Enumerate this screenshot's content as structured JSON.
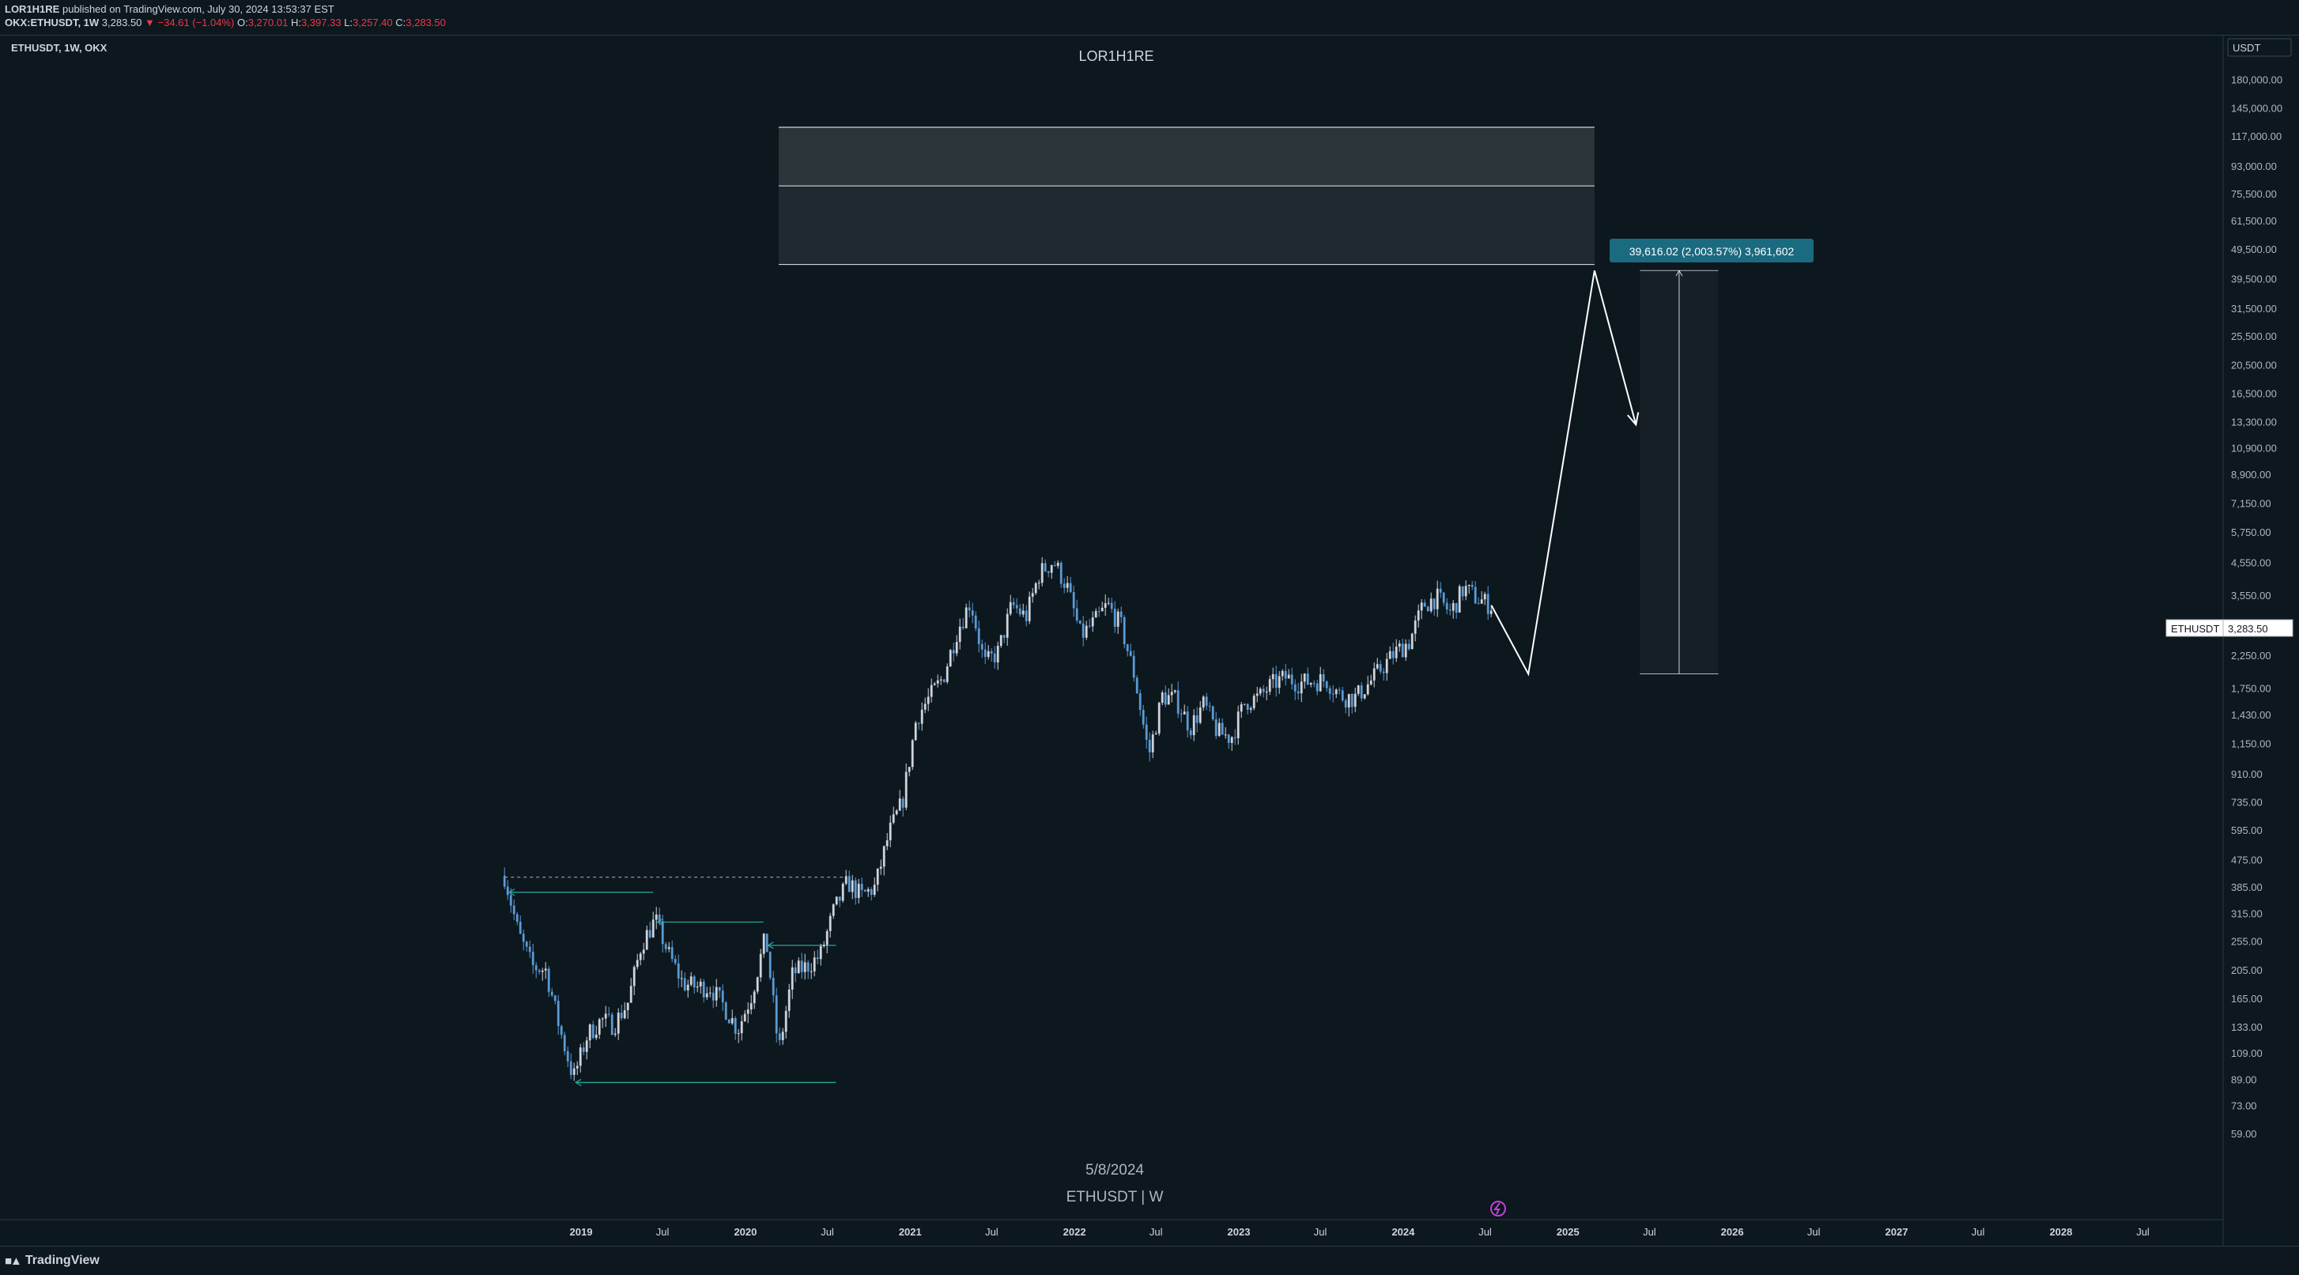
{
  "header": {
    "publisher": "LOR1H1RE",
    "published_text": "published on TradingView.com, July 30, 2024 13:53:37 EST",
    "symbol": "OKX:ETHUSDT, 1W",
    "last": "3,283.50",
    "change": "▼ −34.61 (−1.04%)",
    "o_label": "O:",
    "o": "3,270.01",
    "h_label": "H:",
    "h": "3,397.33",
    "l_label": "L:",
    "l": "3,257.40",
    "c_label": "C:",
    "c": "3,283.50"
  },
  "chart_title": "LOR1H1RE",
  "pane_label": "ETHUSDT, 1W, OKX",
  "watermark": {
    "date": "5/8/2024",
    "symbol": "ETHUSDT | W"
  },
  "price_axis": {
    "currency": "USDT",
    "ticks": [
      "180,000.00",
      "145,000.00",
      "117,000.00",
      "93,000.00",
      "75,500.00",
      "61,500.00",
      "49,500.00",
      "39,500.00",
      "31,500.00",
      "25,500.00",
      "20,500.00",
      "16,500.00",
      "13,300.00",
      "10,900.00",
      "8,900.00",
      "7,150.00",
      "5,750.00",
      "4,550.00",
      "3,550.00",
      "2,850.00",
      "2,250.00",
      "1,750.00",
      "1,430.00",
      "1,150.00",
      "910.00",
      "735.00",
      "595.00",
      "475.00",
      "385.00",
      "315.00",
      "255.00",
      "205.00",
      "165.00",
      "133.00",
      "109.00",
      "89.00",
      "73.00",
      "59.00"
    ],
    "tag_symbol": "ETHUSDT",
    "tag_price": "3,283.50"
  },
  "time_axis": [
    "2019",
    "Jul",
    "2020",
    "Jul",
    "2021",
    "Jul",
    "2022",
    "Jul",
    "2023",
    "Jul",
    "2024",
    "Jul",
    "2025",
    "Jul",
    "2026",
    "Jul",
    "2027",
    "Jul",
    "2028",
    "Jul"
  ],
  "measure_label": "39,616.02 (2,003.57%) 3,961,602",
  "footer": {
    "logo": "TradingView"
  },
  "colors": {
    "background": "#0c171e",
    "candle": "#5b9bd5",
    "candle_up": "#d1d4dc",
    "arrow": "#26a69a",
    "measure_tag": "#1a6a80"
  },
  "chart_data": {
    "type": "candlestick",
    "symbol": "ETHUSDT",
    "interval": "1W",
    "scale": "log",
    "ylim": [
      50,
      200000
    ],
    "x_range": [
      "2018-05",
      "2028-12"
    ],
    "series": [
      {
        "name": "ETHUSDT",
        "points": [
          [
            "2018-07-15",
            420
          ],
          [
            "2018-08-15",
            270
          ],
          [
            "2018-09-15",
            210
          ],
          [
            "2018-10-15",
            205
          ],
          [
            "2018-11-15",
            130
          ],
          [
            "2018-12-15",
            90
          ],
          [
            "2019-01-15",
            125
          ],
          [
            "2019-02-15",
            140
          ],
          [
            "2019-03-15",
            135
          ],
          [
            "2019-04-15",
            160
          ],
          [
            "2019-05-15",
            250
          ],
          [
            "2019-06-15",
            300
          ],
          [
            "2019-07-15",
            230
          ],
          [
            "2019-08-15",
            185
          ],
          [
            "2019-09-15",
            180
          ],
          [
            "2019-10-15",
            180
          ],
          [
            "2019-11-15",
            155
          ],
          [
            "2019-12-15",
            130
          ],
          [
            "2020-01-15",
            170
          ],
          [
            "2020-02-15",
            265
          ],
          [
            "2020-03-15",
            110
          ],
          [
            "2020-04-15",
            200
          ],
          [
            "2020-05-15",
            210
          ],
          [
            "2020-06-15",
            228
          ],
          [
            "2020-07-15",
            320
          ],
          [
            "2020-08-15",
            400
          ],
          [
            "2020-09-15",
            360
          ],
          [
            "2020-10-15",
            385
          ],
          [
            "2020-11-15",
            580
          ],
          [
            "2020-12-15",
            740
          ],
          [
            "2021-01-15",
            1400
          ],
          [
            "2021-02-15",
            1650
          ],
          [
            "2021-03-15",
            1900
          ],
          [
            "2021-04-15",
            2700
          ],
          [
            "2021-05-15",
            3400
          ],
          [
            "2021-06-15",
            2100
          ],
          [
            "2021-07-15",
            2300
          ],
          [
            "2021-08-15",
            3300
          ],
          [
            "2021-09-15",
            3000
          ],
          [
            "2021-10-15",
            4200
          ],
          [
            "2021-11-15",
            4600
          ],
          [
            "2021-12-15",
            3800
          ],
          [
            "2022-01-15",
            2600
          ],
          [
            "2022-02-15",
            2900
          ],
          [
            "2022-03-15",
            3300
          ],
          [
            "2022-04-15",
            2800
          ],
          [
            "2022-05-15",
            1900
          ],
          [
            "2022-06-15",
            1050
          ],
          [
            "2022-07-15",
            1650
          ],
          [
            "2022-08-15",
            1600
          ],
          [
            "2022-09-15",
            1300
          ],
          [
            "2022-10-15",
            1550
          ],
          [
            "2022-11-15",
            1250
          ],
          [
            "2022-12-15",
            1200
          ],
          [
            "2023-01-15",
            1580
          ],
          [
            "2023-02-15",
            1630
          ],
          [
            "2023-03-15",
            1800
          ],
          [
            "2023-04-15",
            1900
          ],
          [
            "2023-05-15",
            1820
          ],
          [
            "2023-06-15",
            1850
          ],
          [
            "2023-07-15",
            1860
          ],
          [
            "2023-08-15",
            1650
          ],
          [
            "2023-09-15",
            1620
          ],
          [
            "2023-10-15",
            1800
          ],
          [
            "2023-11-15",
            2050
          ],
          [
            "2023-12-15",
            2300
          ],
          [
            "2024-01-15",
            2500
          ],
          [
            "2024-02-15",
            3300
          ],
          [
            "2024-03-15",
            3500
          ],
          [
            "2024-04-15",
            3100
          ],
          [
            "2024-05-15",
            3750
          ],
          [
            "2024-06-15",
            3450
          ],
          [
            "2024-07-15",
            3283.5
          ]
        ]
      }
    ],
    "annotations": {
      "projection_path": [
        [
          "2024-07-15",
          3283.5
        ],
        [
          "2024-10-05",
          1950
        ],
        [
          "2025-03-01",
          42000
        ],
        [
          "2025-06-01",
          13000
        ]
      ],
      "target_zone": {
        "x_start": "2020-03-15",
        "x_end": "2025-03-01",
        "y_low": 44000,
        "y_mid": 80000,
        "y_high": 125000
      },
      "measure": {
        "x_start": "2025-06-10",
        "x_end": "2025-12-01",
        "y_low": 1950,
        "y_high": 42000,
        "label": "39,616.02 (2,003.57%) 3,961,602"
      },
      "arrow_lines": [
        {
          "x_start": "2018-12-20",
          "x_end": "2020-07-20",
          "y": 87
        },
        {
          "x_start": "2018-07-25",
          "x_end": "2019-06-10",
          "y": 370
        },
        {
          "x_start": "2019-06-20",
          "x_end": "2020-02-10",
          "y": 295
        },
        {
          "x_start": "2020-02-20",
          "x_end": "2020-07-20",
          "y": 247
        }
      ],
      "dashed_level": {
        "x_start": "2018-07-15",
        "x_end": "2020-08-10",
        "y": 415
      }
    }
  }
}
